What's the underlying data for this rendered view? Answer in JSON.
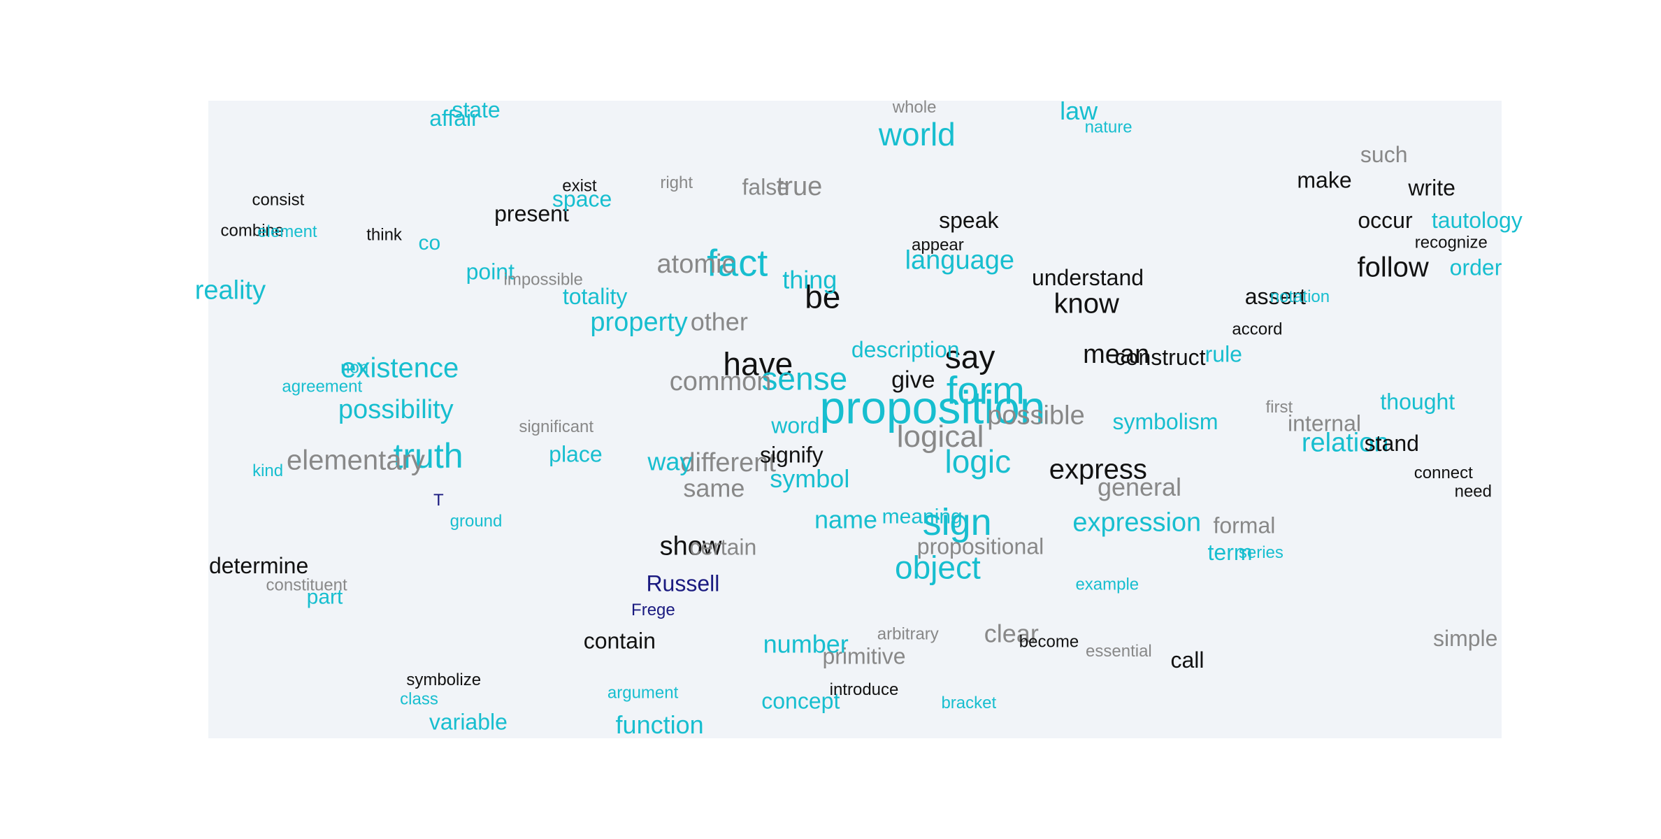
{
  "colors": {
    "noun": "#17becf",
    "verb": "#111111",
    "adjective": "#888888",
    "proper": "#1a1a80",
    "background": "#f1f4f8"
  },
  "chart_data": {
    "type": "wordcloud",
    "title": "",
    "xlabel": "",
    "ylabel": "",
    "xlim": [
      0,
      1
    ],
    "ylim": [
      0,
      1
    ],
    "grid": false,
    "legend": "none",
    "words": [
      {
        "text": "proposition",
        "x": 0.56,
        "y": 0.487,
        "weight": 66,
        "cat": "noun"
      },
      {
        "text": "form",
        "x": 0.601,
        "y": 0.459,
        "weight": 56,
        "cat": "noun"
      },
      {
        "text": "sign",
        "x": 0.579,
        "y": 0.665,
        "weight": 54,
        "cat": "noun"
      },
      {
        "text": "fact",
        "x": 0.409,
        "y": 0.259,
        "weight": 54,
        "cat": "noun"
      },
      {
        "text": "truth",
        "x": 0.17,
        "y": 0.561,
        "weight": 50,
        "cat": "noun"
      },
      {
        "text": "say",
        "x": 0.589,
        "y": 0.406,
        "weight": 46,
        "cat": "verb"
      },
      {
        "text": "have",
        "x": 0.425,
        "y": 0.417,
        "weight": 46,
        "cat": "verb"
      },
      {
        "text": "be",
        "x": 0.475,
        "y": 0.312,
        "weight": 46,
        "cat": "verb"
      },
      {
        "text": "logic",
        "x": 0.595,
        "y": 0.57,
        "weight": 46,
        "cat": "noun"
      },
      {
        "text": "sense",
        "x": 0.461,
        "y": 0.44,
        "weight": 46,
        "cat": "noun"
      },
      {
        "text": "world",
        "x": 0.548,
        "y": 0.057,
        "weight": 46,
        "cat": "noun"
      },
      {
        "text": "object",
        "x": 0.564,
        "y": 0.736,
        "weight": 46,
        "cat": "noun"
      },
      {
        "text": "logical",
        "x": 0.566,
        "y": 0.53,
        "weight": 44,
        "cat": "adjective"
      },
      {
        "text": "elementary",
        "x": 0.114,
        "y": 0.567,
        "weight": 40,
        "cat": "adjective"
      },
      {
        "text": "existence",
        "x": 0.148,
        "y": 0.422,
        "weight": 40,
        "cat": "noun"
      },
      {
        "text": "express",
        "x": 0.688,
        "y": 0.581,
        "weight": 40,
        "cat": "verb"
      },
      {
        "text": "follow",
        "x": 0.916,
        "y": 0.264,
        "weight": 40,
        "cat": "verb"
      },
      {
        "text": "know",
        "x": 0.679,
        "y": 0.321,
        "weight": 40,
        "cat": "verb"
      },
      {
        "text": "atomic",
        "x": 0.377,
        "y": 0.259,
        "weight": 38,
        "cat": "adjective"
      },
      {
        "text": "possible",
        "x": 0.64,
        "y": 0.496,
        "weight": 38,
        "cat": "adjective"
      },
      {
        "text": "language",
        "x": 0.581,
        "y": 0.253,
        "weight": 38,
        "cat": "noun"
      },
      {
        "text": "possibility",
        "x": 0.145,
        "y": 0.487,
        "weight": 38,
        "cat": "noun"
      },
      {
        "text": "common",
        "x": 0.396,
        "y": 0.443,
        "weight": 38,
        "cat": "adjective"
      },
      {
        "text": "different",
        "x": 0.402,
        "y": 0.57,
        "weight": 38,
        "cat": "adjective"
      },
      {
        "text": "mean",
        "x": 0.702,
        "y": 0.4,
        "weight": 38,
        "cat": "verb"
      },
      {
        "text": "property",
        "x": 0.333,
        "y": 0.35,
        "weight": 38,
        "cat": "noun"
      },
      {
        "text": "relation",
        "x": 0.879,
        "y": 0.539,
        "weight": 38,
        "cat": "noun"
      },
      {
        "text": "true",
        "x": 0.457,
        "y": 0.137,
        "weight": 38,
        "cat": "adjective"
      },
      {
        "text": "expression",
        "x": 0.718,
        "y": 0.664,
        "weight": 38,
        "cat": "noun"
      },
      {
        "text": "reality",
        "x": 0.017,
        "y": 0.3,
        "weight": 38,
        "cat": "noun"
      },
      {
        "text": "show",
        "x": 0.373,
        "y": 0.701,
        "weight": 38,
        "cat": "verb"
      },
      {
        "text": "other",
        "x": 0.395,
        "y": 0.35,
        "weight": 36,
        "cat": "adjective"
      },
      {
        "text": "thing",
        "x": 0.465,
        "y": 0.284,
        "weight": 36,
        "cat": "noun"
      },
      {
        "text": "same",
        "x": 0.391,
        "y": 0.611,
        "weight": 36,
        "cat": "adjective"
      },
      {
        "text": "general",
        "x": 0.72,
        "y": 0.609,
        "weight": 36,
        "cat": "adjective"
      },
      {
        "text": "symbol",
        "x": 0.465,
        "y": 0.596,
        "weight": 36,
        "cat": "noun"
      },
      {
        "text": "number",
        "x": 0.462,
        "y": 0.855,
        "weight": 36,
        "cat": "noun"
      },
      {
        "text": "clear",
        "x": 0.621,
        "y": 0.839,
        "weight": 36,
        "cat": "adjective"
      },
      {
        "text": "name",
        "x": 0.493,
        "y": 0.66,
        "weight": 36,
        "cat": "noun"
      },
      {
        "text": "function",
        "x": 0.349,
        "y": 0.982,
        "weight": 36,
        "cat": "noun"
      },
      {
        "text": "way",
        "x": 0.357,
        "y": 0.569,
        "weight": 36,
        "cat": "noun"
      },
      {
        "text": "give",
        "x": 0.545,
        "y": 0.44,
        "weight": 34,
        "cat": "verb"
      },
      {
        "text": "construct",
        "x": 0.736,
        "y": 0.405,
        "weight": 32,
        "cat": "verb"
      },
      {
        "text": "propositional",
        "x": 0.597,
        "y": 0.702,
        "weight": 32,
        "cat": "adjective"
      },
      {
        "text": "Russell",
        "x": 0.367,
        "y": 0.76,
        "weight": 32,
        "cat": "proper"
      },
      {
        "text": "understand",
        "x": 0.68,
        "y": 0.28,
        "weight": 32,
        "cat": "verb"
      },
      {
        "text": "assert",
        "x": 0.825,
        "y": 0.31,
        "weight": 32,
        "cat": "verb"
      },
      {
        "text": "occur",
        "x": 0.91,
        "y": 0.19,
        "weight": 32,
        "cat": "verb"
      },
      {
        "text": "write",
        "x": 0.946,
        "y": 0.139,
        "weight": 32,
        "cat": "verb"
      },
      {
        "text": "tautology",
        "x": 0.981,
        "y": 0.19,
        "weight": 32,
        "cat": "noun"
      },
      {
        "text": "order",
        "x": 0.98,
        "y": 0.264,
        "weight": 32,
        "cat": "noun"
      },
      {
        "text": "make",
        "x": 0.863,
        "y": 0.127,
        "weight": 32,
        "cat": "verb"
      },
      {
        "text": "such",
        "x": 0.909,
        "y": 0.087,
        "weight": 32,
        "cat": "adjective"
      },
      {
        "text": "thought",
        "x": 0.935,
        "y": 0.475,
        "weight": 32,
        "cat": "noun"
      },
      {
        "text": "symbolism",
        "x": 0.74,
        "y": 0.506,
        "weight": 32,
        "cat": "noun"
      },
      {
        "text": "internal",
        "x": 0.863,
        "y": 0.509,
        "weight": 32,
        "cat": "adjective"
      },
      {
        "text": "speak",
        "x": 0.588,
        "y": 0.19,
        "weight": 32,
        "cat": "verb"
      },
      {
        "text": "description",
        "x": 0.539,
        "y": 0.393,
        "weight": 32,
        "cat": "noun"
      },
      {
        "text": "word",
        "x": 0.454,
        "y": 0.512,
        "weight": 32,
        "cat": "noun"
      },
      {
        "text": "signify",
        "x": 0.451,
        "y": 0.558,
        "weight": 32,
        "cat": "verb"
      },
      {
        "text": "place",
        "x": 0.284,
        "y": 0.557,
        "weight": 32,
        "cat": "noun"
      },
      {
        "text": "point",
        "x": 0.218,
        "y": 0.271,
        "weight": 32,
        "cat": "noun"
      },
      {
        "text": "totality",
        "x": 0.299,
        "y": 0.31,
        "weight": 32,
        "cat": "noun"
      },
      {
        "text": "present",
        "x": 0.25,
        "y": 0.18,
        "weight": 32,
        "cat": "verb"
      },
      {
        "text": "space",
        "x": 0.289,
        "y": 0.157,
        "weight": 32,
        "cat": "noun"
      },
      {
        "text": "false",
        "x": 0.431,
        "y": 0.138,
        "weight": 32,
        "cat": "adjective"
      },
      {
        "text": "co",
        "x": 0.171,
        "y": 0.225,
        "weight": 30,
        "cat": "noun"
      },
      {
        "text": "formal",
        "x": 0.801,
        "y": 0.669,
        "weight": 32,
        "cat": "adjective"
      },
      {
        "text": "term",
        "x": 0.79,
        "y": 0.711,
        "weight": 32,
        "cat": "noun"
      },
      {
        "text": "meaning",
        "x": 0.552,
        "y": 0.654,
        "weight": 30,
        "cat": "noun"
      },
      {
        "text": "certain",
        "x": 0.398,
        "y": 0.703,
        "weight": 32,
        "cat": "adjective"
      },
      {
        "text": "determine",
        "x": 0.039,
        "y": 0.732,
        "weight": 32,
        "cat": "verb"
      },
      {
        "text": "contain",
        "x": 0.318,
        "y": 0.85,
        "weight": 32,
        "cat": "verb"
      },
      {
        "text": "primitive",
        "x": 0.507,
        "y": 0.874,
        "weight": 32,
        "cat": "adjective"
      },
      {
        "text": "concept",
        "x": 0.458,
        "y": 0.944,
        "weight": 32,
        "cat": "noun"
      },
      {
        "text": "variable",
        "x": 0.201,
        "y": 0.977,
        "weight": 32,
        "cat": "noun"
      },
      {
        "text": "simple",
        "x": 0.972,
        "y": 0.846,
        "weight": 32,
        "cat": "adjective"
      },
      {
        "text": "call",
        "x": 0.757,
        "y": 0.88,
        "weight": 32,
        "cat": "verb"
      },
      {
        "text": "stand",
        "x": 0.915,
        "y": 0.54,
        "weight": 32,
        "cat": "verb"
      },
      {
        "text": "rule",
        "x": 0.785,
        "y": 0.4,
        "weight": 32,
        "cat": "noun"
      },
      {
        "text": "law",
        "x": 0.673,
        "y": 0.019,
        "weight": 36,
        "cat": "noun"
      },
      {
        "text": "state",
        "x": 0.207,
        "y": 0.017,
        "weight": 32,
        "cat": "noun"
      },
      {
        "text": "affair",
        "x": 0.19,
        "y": 0.03,
        "weight": 32,
        "cat": "noun"
      },
      {
        "text": "nature",
        "x": 0.696,
        "y": 0.043,
        "weight": 24,
        "cat": "noun"
      },
      {
        "text": "whole",
        "x": 0.546,
        "y": 0.012,
        "weight": 24,
        "cat": "adjective"
      },
      {
        "text": "right",
        "x": 0.362,
        "y": 0.13,
        "weight": 24,
        "cat": "adjective"
      },
      {
        "text": "exist",
        "x": 0.287,
        "y": 0.135,
        "weight": 24,
        "cat": "verb"
      },
      {
        "text": "consist",
        "x": 0.054,
        "y": 0.157,
        "weight": 24,
        "cat": "verb"
      },
      {
        "text": "combine",
        "x": 0.034,
        "y": 0.205,
        "weight": 24,
        "cat": "verb"
      },
      {
        "text": "element",
        "x": 0.061,
        "y": 0.207,
        "weight": 24,
        "cat": "noun"
      },
      {
        "text": "think",
        "x": 0.136,
        "y": 0.212,
        "weight": 24,
        "cat": "verb"
      },
      {
        "text": "impossible",
        "x": 0.259,
        "y": 0.282,
        "weight": 24,
        "cat": "adjective"
      },
      {
        "text": "appear",
        "x": 0.564,
        "y": 0.228,
        "weight": 24,
        "cat": "verb"
      },
      {
        "text": "recognize",
        "x": 0.961,
        "y": 0.224,
        "weight": 24,
        "cat": "verb"
      },
      {
        "text": "notation",
        "x": 0.844,
        "y": 0.309,
        "weight": 24,
        "cat": "noun"
      },
      {
        "text": "accord",
        "x": 0.811,
        "y": 0.36,
        "weight": 24,
        "cat": "verb"
      },
      {
        "text": "agreement",
        "x": 0.088,
        "y": 0.45,
        "weight": 24,
        "cat": "noun"
      },
      {
        "text": "non",
        "x": 0.113,
        "y": 0.42,
        "weight": 24,
        "cat": "noun"
      },
      {
        "text": "first",
        "x": 0.828,
        "y": 0.482,
        "weight": 24,
        "cat": "adjective"
      },
      {
        "text": "significant",
        "x": 0.269,
        "y": 0.513,
        "weight": 24,
        "cat": "adjective"
      },
      {
        "text": "kind",
        "x": 0.046,
        "y": 0.582,
        "weight": 24,
        "cat": "noun"
      },
      {
        "text": "connect",
        "x": 0.955,
        "y": 0.585,
        "weight": 24,
        "cat": "verb"
      },
      {
        "text": "need",
        "x": 0.978,
        "y": 0.614,
        "weight": 24,
        "cat": "verb"
      },
      {
        "text": "T",
        "x": 0.178,
        "y": 0.628,
        "weight": 24,
        "cat": "proper"
      },
      {
        "text": "ground",
        "x": 0.207,
        "y": 0.661,
        "weight": 24,
        "cat": "noun"
      },
      {
        "text": "series",
        "x": 0.814,
        "y": 0.71,
        "weight": 24,
        "cat": "noun"
      },
      {
        "text": "example",
        "x": 0.695,
        "y": 0.76,
        "weight": 24,
        "cat": "noun"
      },
      {
        "text": "constituent",
        "x": 0.076,
        "y": 0.761,
        "weight": 24,
        "cat": "adjective"
      },
      {
        "text": "part",
        "x": 0.09,
        "y": 0.78,
        "weight": 30,
        "cat": "noun"
      },
      {
        "text": "Frege",
        "x": 0.344,
        "y": 0.8,
        "weight": 24,
        "cat": "proper"
      },
      {
        "text": "arbitrary",
        "x": 0.541,
        "y": 0.838,
        "weight": 24,
        "cat": "adjective"
      },
      {
        "text": "become",
        "x": 0.65,
        "y": 0.85,
        "weight": 24,
        "cat": "verb"
      },
      {
        "text": "essential",
        "x": 0.704,
        "y": 0.865,
        "weight": 24,
        "cat": "adjective"
      },
      {
        "text": "symbolize",
        "x": 0.182,
        "y": 0.91,
        "weight": 24,
        "cat": "verb"
      },
      {
        "text": "class",
        "x": 0.163,
        "y": 0.94,
        "weight": 24,
        "cat": "noun"
      },
      {
        "text": "argument",
        "x": 0.336,
        "y": 0.93,
        "weight": 24,
        "cat": "noun"
      },
      {
        "text": "introduce",
        "x": 0.507,
        "y": 0.925,
        "weight": 24,
        "cat": "verb"
      },
      {
        "text": "bracket",
        "x": 0.588,
        "y": 0.946,
        "weight": 24,
        "cat": "noun"
      }
    ]
  }
}
